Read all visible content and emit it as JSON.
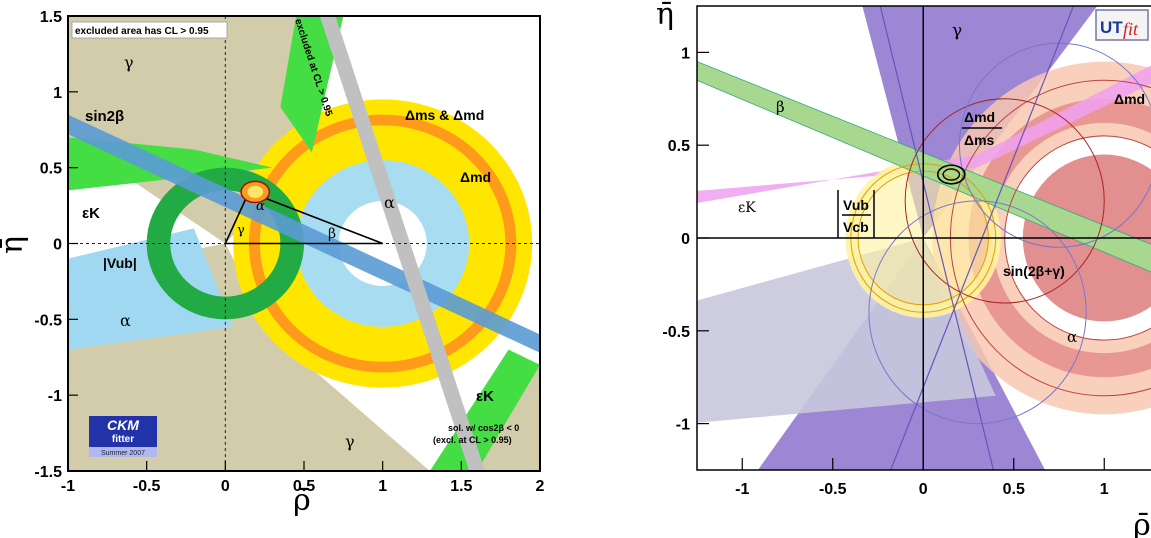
{
  "chart_data": [
    {
      "type": "constraint-plot",
      "source_label": "CKMfitter",
      "xlabel": "ρ̄",
      "ylabel": "η̄",
      "xlim": [
        -1,
        2
      ],
      "ylim": [
        -1.5,
        1.5
      ],
      "x_ticks": [
        "-1",
        "-0.5",
        "0",
        "0.5",
        "1",
        "1.5",
        "2"
      ],
      "y_ticks": [
        "1.5",
        "1",
        "0.5",
        "0",
        "-0.5",
        "-1",
        "-1.5"
      ],
      "annotations": {
        "excluded_note": "excluded area has CL > 0.95",
        "excluded_cl": "excluded at CL > 0.95",
        "gamma_top": "γ",
        "gamma_bottom": "γ",
        "alpha_left": "α",
        "alpha_mid": "α",
        "alpha_tri": "α",
        "gamma_tri": "γ",
        "beta_tri": "β",
        "sin2beta": "sin2β",
        "dms_dmd": "Δms & Δmd",
        "dmd": "Δmd",
        "epsk_left": "εK",
        "epsk_right": "εK",
        "vub": "|Vub|",
        "sol_line1": "sol. w/ cos2β < 0",
        "sol_line2": "(excl. at CL > 0.95)"
      },
      "logo": {
        "line1": "CKM",
        "line2": "fitter",
        "line3": "Summer 2007"
      },
      "apex": {
        "x": 0.15,
        "y": 0.34
      },
      "colors": {
        "background": "#d8d3b0",
        "gamma_region": "#d2ccaa",
        "sin2beta": "#5a9bd5",
        "dmd_ring": "#ffe600",
        "dms_ring": "#ff9a1a",
        "vub_ring": "#22aa44",
        "epsk": "#44dd44",
        "alpha": "#9fd8f0"
      }
    },
    {
      "type": "constraint-plot",
      "source_label": "UTfit",
      "xlabel": "ρ̄",
      "ylabel": "η̄",
      "xlim": [
        -1.25,
        1.25
      ],
      "ylim": [
        -1.25,
        1.25
      ],
      "x_ticks": [
        "-1",
        "-0.5",
        "0",
        "0.5",
        "1"
      ],
      "y_ticks": [
        "1",
        "0.5",
        "0",
        "-0.5",
        "-1"
      ],
      "annotations": {
        "gamma": "γ",
        "beta": "β",
        "alpha": "α",
        "dmd_dms_num": "Δmd",
        "dmd_dms_den": "Δms",
        "dmd": "Δmd",
        "epsk": "εK",
        "vub_num": "Vub",
        "vub_den": "Vcb",
        "sin2bg": "sin(2β+γ)"
      },
      "logo": {
        "line1": "UT",
        "line2": "fit"
      },
      "apex": {
        "x": 0.155,
        "y": 0.342
      },
      "colors": {
        "gamma": "#9d86d4",
        "beta": "#a8d890",
        "dmd_dms": "#f8c8b0",
        "dmd_band": "#e58888",
        "epsk": "#f0a0f0",
        "vub": "#fff3a0",
        "alpha": "#c8c8dc",
        "sin2bg": "#d86a6a"
      }
    }
  ]
}
